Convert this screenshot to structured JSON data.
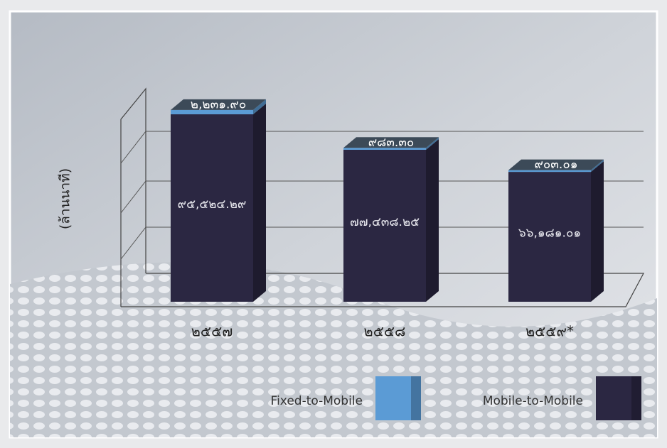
{
  "chart_data": {
    "type": "bar3d_stacked",
    "y_label": "(ล้านนาที)",
    "categories": [
      "๒๕๕๗",
      "๒๕๕๘",
      "๒๕๕๙*"
    ],
    "series": [
      {
        "name": "Fixed-to-Mobile",
        "color": "#5b9bd5",
        "values": [
          2231.9,
          983.3,
          903.01
        ],
        "value_labels": [
          "๒,๒๓๑.๙๐",
          "๙๘๓.๓๐",
          "๙๐๓.๐๑"
        ]
      },
      {
        "name": "Mobile-to-Mobile",
        "color": "#2b2742",
        "values": [
          95524.29,
          77438.25,
          66181.01
        ],
        "value_labels": [
          "๙๕,๕๒๔.๒๙",
          "๗๗,๔๓๘.๒๕",
          "๖๖,๑๘๑.๐๑"
        ]
      }
    ],
    "ylim": [
      0,
      110000
    ],
    "grid": true
  }
}
